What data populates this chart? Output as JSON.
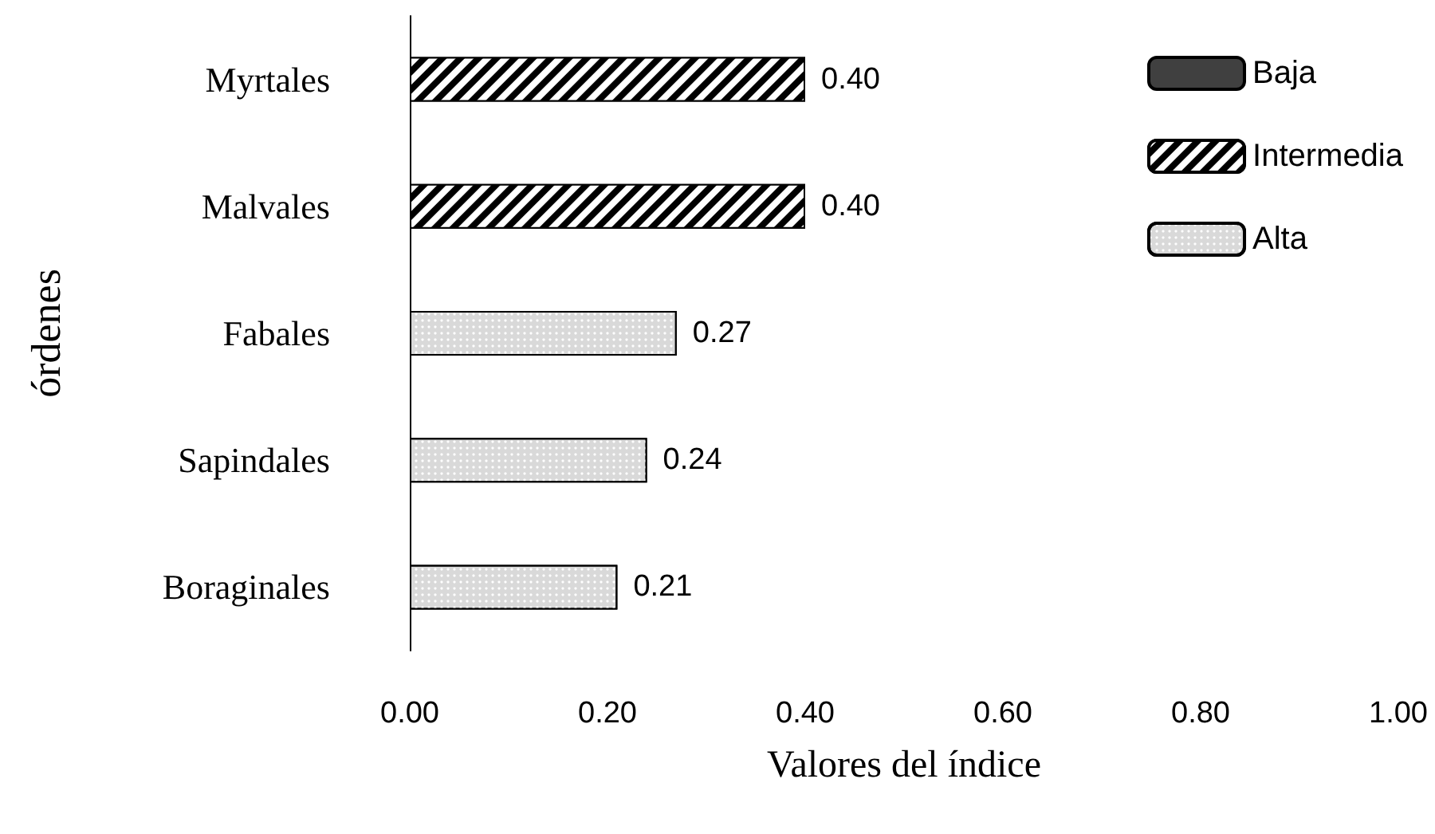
{
  "chart_data": {
    "type": "bar",
    "orientation": "horizontal",
    "stacked": true,
    "xlabel": "Valores del índice",
    "ylabel": "órdenes",
    "categories": [
      "Myrtales",
      "Malvales",
      "Fabales",
      "Sapindales",
      "Boraginales"
    ],
    "series": [
      {
        "name": "Baja",
        "color": "#404040",
        "values": [
          null,
          null,
          null,
          null,
          null
        ],
        "value_labels": [
          null,
          null,
          null,
          null,
          null
        ]
      },
      {
        "name": "Intermedia",
        "color": "#000000",
        "values": [
          0.4,
          0.4,
          null,
          null,
          null
        ],
        "value_labels": [
          "0.40",
          "0.40",
          null,
          null,
          null
        ]
      },
      {
        "name": "Alta",
        "color": "#d9d9d9",
        "values": [
          null,
          null,
          0.27,
          0.24,
          0.21
        ],
        "value_labels": [
          null,
          null,
          "0.27",
          "0.24",
          "0.21"
        ]
      }
    ],
    "xlim": [
      0,
      1
    ],
    "xticks": [
      {
        "value": 0,
        "label": "0.00"
      },
      {
        "value": 0.2,
        "label": "0.20"
      },
      {
        "value": 0.4,
        "label": "0.40"
      },
      {
        "value": 0.6,
        "label": "0.60"
      },
      {
        "value": 0.8,
        "label": "0.80"
      },
      {
        "value": 1,
        "label": "1.00"
      }
    ],
    "grid": false,
    "legend": "top right"
  }
}
